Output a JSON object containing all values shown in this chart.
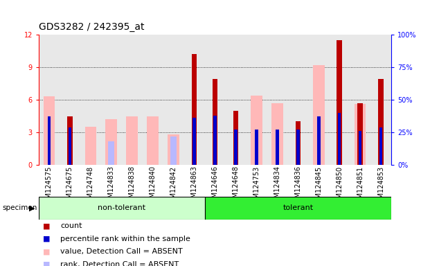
{
  "title": "GDS3282 / 242395_at",
  "samples": [
    "GSM124575",
    "GSM124675",
    "GSM124748",
    "GSM124833",
    "GSM124838",
    "GSM124840",
    "GSM124842",
    "GSM124863",
    "GSM124646",
    "GSM124648",
    "GSM124753",
    "GSM124834",
    "GSM124836",
    "GSM124845",
    "GSM124850",
    "GSM124851",
    "GSM124853"
  ],
  "non_tolerant_indices": [
    0,
    1,
    2,
    3,
    4,
    5,
    6,
    7
  ],
  "tolerant_indices": [
    8,
    9,
    10,
    11,
    12,
    13,
    14,
    15,
    16
  ],
  "count_values": [
    0,
    4.5,
    0,
    0,
    0,
    0,
    0,
    10.2,
    7.9,
    5.0,
    0,
    0,
    4.0,
    0,
    11.5,
    5.7,
    7.9
  ],
  "rank_values": [
    37,
    29,
    0,
    0,
    0,
    0,
    0,
    36,
    38,
    27,
    27,
    27,
    27,
    37,
    40,
    26,
    29
  ],
  "value_absent": [
    6.3,
    0,
    3.5,
    4.2,
    4.5,
    4.5,
    2.8,
    0,
    0,
    0,
    6.4,
    5.7,
    0,
    9.2,
    0,
    5.6,
    0
  ],
  "rank_absent": [
    0,
    0,
    0,
    2.2,
    0,
    0,
    2.6,
    0,
    0,
    0,
    0,
    0,
    0,
    0,
    0,
    0,
    0
  ],
  "ylim_left": [
    0,
    12
  ],
  "ylim_right": [
    0,
    100
  ],
  "yticks_left": [
    0,
    3,
    6,
    9,
    12
  ],
  "yticks_right": [
    0,
    25,
    50,
    75,
    100
  ],
  "count_color": "#bb0000",
  "rank_color": "#0000cc",
  "value_absent_color": "#ffb8b8",
  "rank_absent_color": "#b8b8ff",
  "non_tolerant_color": "#ccffcc",
  "tolerant_color": "#33ee33",
  "plot_bg_color": "#e8e8e8",
  "bg_color": "#ffffff",
  "title_fontsize": 10,
  "tick_fontsize": 7,
  "legend_fontsize": 8
}
